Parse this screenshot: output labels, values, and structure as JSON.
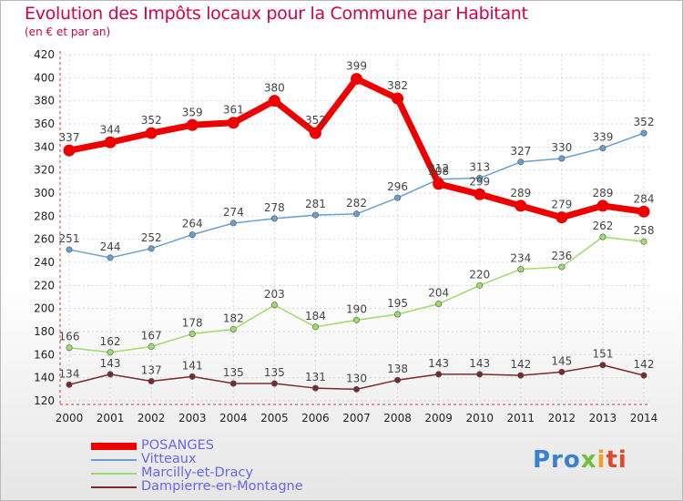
{
  "title": "Evolution des Impôts locaux pour la Commune par Habitant",
  "subtitle": "(en € et par an)",
  "chart_data": {
    "type": "line",
    "title": "Evolution des Impôts locaux pour la Commune par Habitant",
    "subtitle": "(en € et par an)",
    "x": [
      "2000",
      "2001",
      "2002",
      "2003",
      "2004",
      "2005",
      "2006",
      "2007",
      "2008",
      "2009",
      "2010",
      "2011",
      "2012",
      "2013",
      "2014"
    ],
    "ylim": [
      120,
      420
    ],
    "yticks": [
      120,
      140,
      160,
      180,
      200,
      220,
      240,
      260,
      280,
      300,
      320,
      340,
      360,
      380,
      400,
      420
    ],
    "grid": true,
    "legend_position": "bottom-left",
    "series": [
      {
        "name": "POSANGES",
        "color": "#ee0000",
        "values": [
          337,
          344,
          352,
          359,
          361,
          380,
          352,
          399,
          382,
          308,
          299,
          289,
          279,
          289,
          284
        ]
      },
      {
        "name": "Vitteaux",
        "color": "#6a9fd0",
        "values": [
          251,
          244,
          252,
          264,
          274,
          278,
          281,
          282,
          296,
          312,
          313,
          327,
          330,
          339,
          352
        ]
      },
      {
        "name": "Marcilly-et-Dracy",
        "color": "#9fdc6a",
        "values": [
          166,
          162,
          167,
          178,
          182,
          203,
          184,
          190,
          195,
          204,
          220,
          234,
          236,
          262,
          258
        ]
      },
      {
        "name": "Dampierre-en-Montagne",
        "color": "#7a2a2a",
        "values": [
          134,
          143,
          137,
          141,
          135,
          135,
          131,
          130,
          138,
          143,
          143,
          142,
          145,
          151,
          142
        ]
      }
    ]
  },
  "logo": {
    "p1": "Pro",
    "p2": "x",
    "p3": "i",
    "p4": "ti"
  }
}
